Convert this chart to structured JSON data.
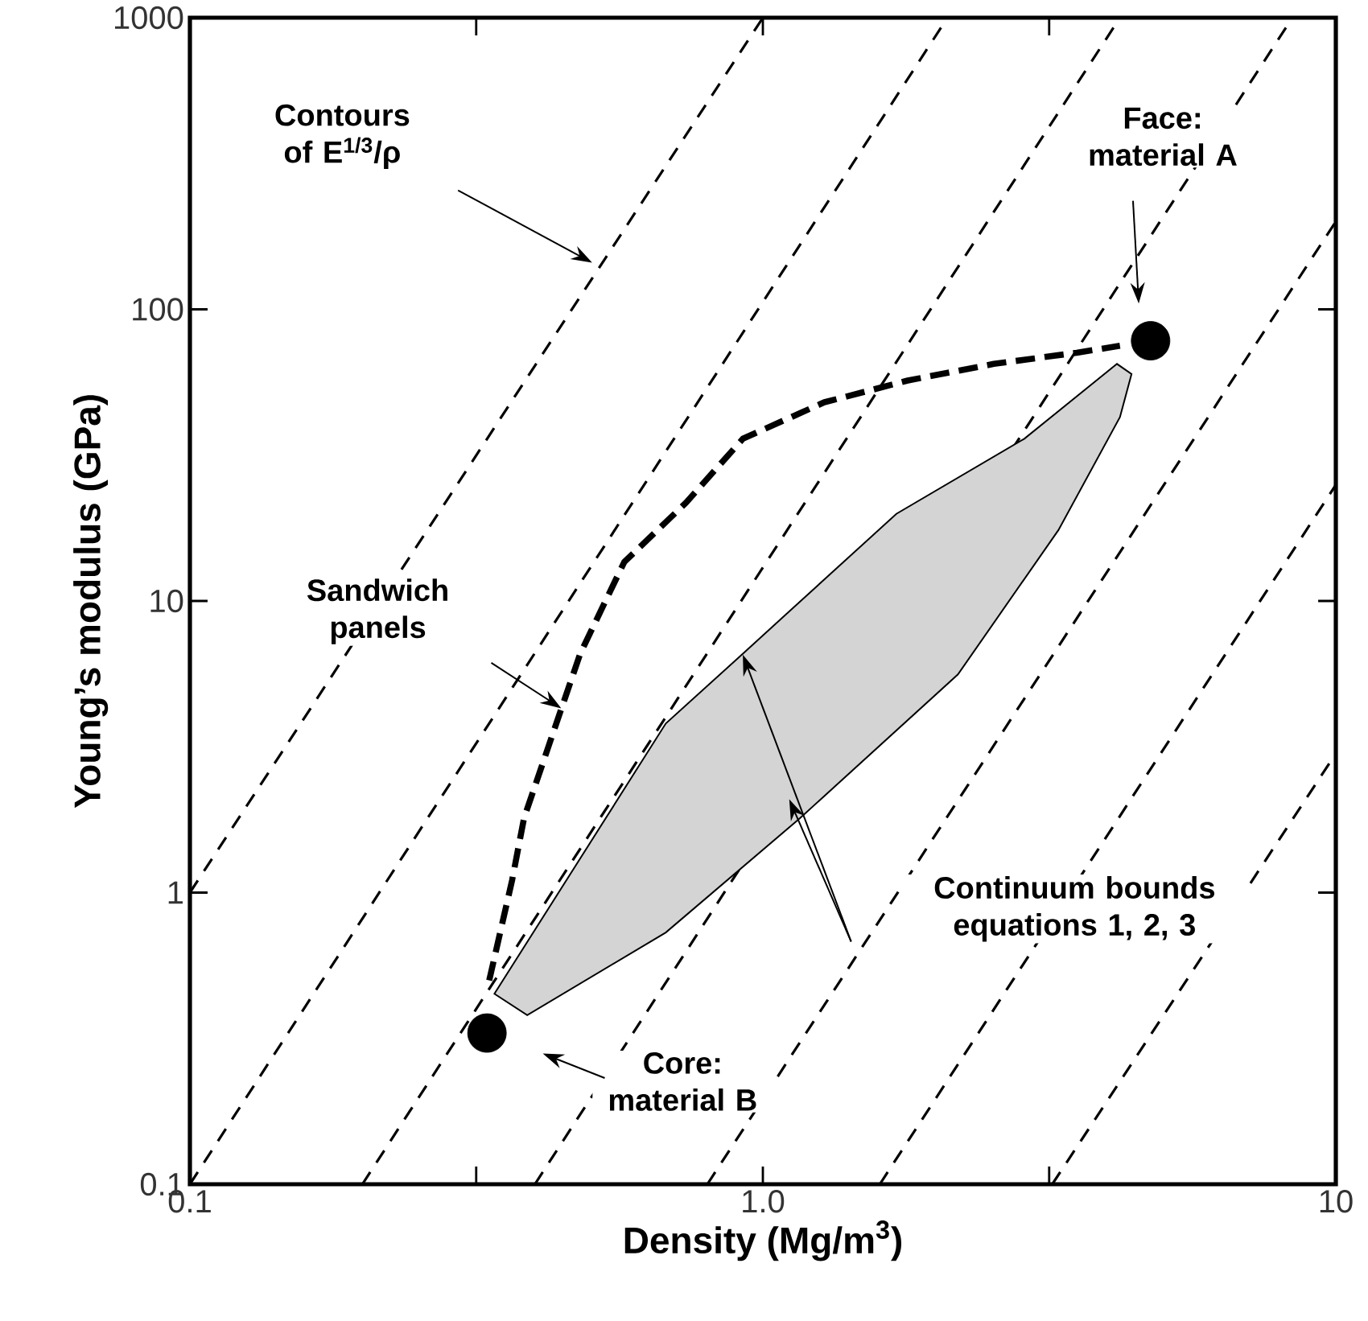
{
  "chart_data": {
    "type": "line",
    "log": "xy",
    "xlabel": "Density (Mg/m$^{3}$)",
    "ylabel": "Young’s modulus (GPa)",
    "xlim": [
      0.1,
      10
    ],
    "ylim": [
      0.1,
      1000
    ],
    "xticks": [
      0.1,
      {
        "value": 0.316,
        "label": null
      },
      {
        "value": 1,
        "label": "1.0"
      },
      {
        "value": 3.16,
        "label": null
      },
      10
    ],
    "yticks": [
      0.1,
      1,
      10,
      100,
      1000
    ],
    "series": [
      {
        "x": [
          0.1,
          1.0
        ],
        "values": [
          1,
          1000
        ],
        "color": "#000000",
        "line_style": "dashed",
        "marker": "none"
      },
      {
        "x": [
          0.1,
          2.1
        ],
        "values": [
          0.1,
          1000
        ],
        "color": "#000000",
        "line_style": "dashed",
        "marker": "none"
      },
      {
        "x": [
          0.2,
          4.2
        ],
        "values": [
          0.1,
          1000
        ],
        "color": "#000000",
        "line_style": "dashed",
        "marker": "none"
      },
      {
        "x": [
          0.4,
          8.4
        ],
        "values": [
          0.1,
          1000
        ],
        "color": "#000000",
        "line_style": "dashed",
        "marker": "none"
      },
      {
        "x": [
          0.8,
          10
        ],
        "values": [
          0.1,
          200
        ],
        "color": "#000000",
        "line_style": "dashed",
        "marker": "none"
      },
      {
        "x": [
          1.6,
          10
        ],
        "values": [
          0.1,
          25
        ],
        "color": "#000000",
        "line_style": "dashed",
        "marker": "none"
      },
      {
        "x": [
          3.2,
          10
        ],
        "values": [
          0.1,
          3
        ],
        "color": "#000000",
        "line_style": "dashed",
        "marker": "none"
      },
      {
        "type": "area",
        "x": [
          0.34,
          0.677,
          0.923,
          1.71,
          2.86,
          4.15,
          4.4,
          4.2,
          3.28,
          2.19,
          1.15,
          0.677,
          0.388
        ],
        "values": [
          0.45,
          3.8,
          6.6,
          19.9,
          36,
          65,
          60,
          42.7,
          17.5,
          5.6,
          1.77,
          0.73,
          0.38
        ],
        "color": "#d4d4d4"
      },
      {
        "x": [
          0.333,
          0.365,
          0.383,
          0.434,
          0.48,
          0.573,
          0.734,
          0.923,
          1.28,
          1.79,
          2.53,
          3.53,
          4.2
        ],
        "values": [
          0.5,
          1.1,
          1.8,
          3.7,
          6.6,
          13.6,
          21.7,
          36,
          48,
          57,
          65,
          71,
          75
        ],
        "color": "#000000",
        "line_style": "dashed",
        "marker": "none"
      },
      {
        "type": "scatter",
        "x": [
          0.33,
          4.75
        ],
        "values": [
          0.33,
          78
        ],
        "color": "#000000",
        "marker": "circle"
      }
    ],
    "annotations": [
      "Contours of E$^{1/3}$/ρ",
      "Face: material A",
      "Sandwich panels",
      "Continuum bounds equations 1, 2, 3",
      "Core: material B"
    ]
  }
}
